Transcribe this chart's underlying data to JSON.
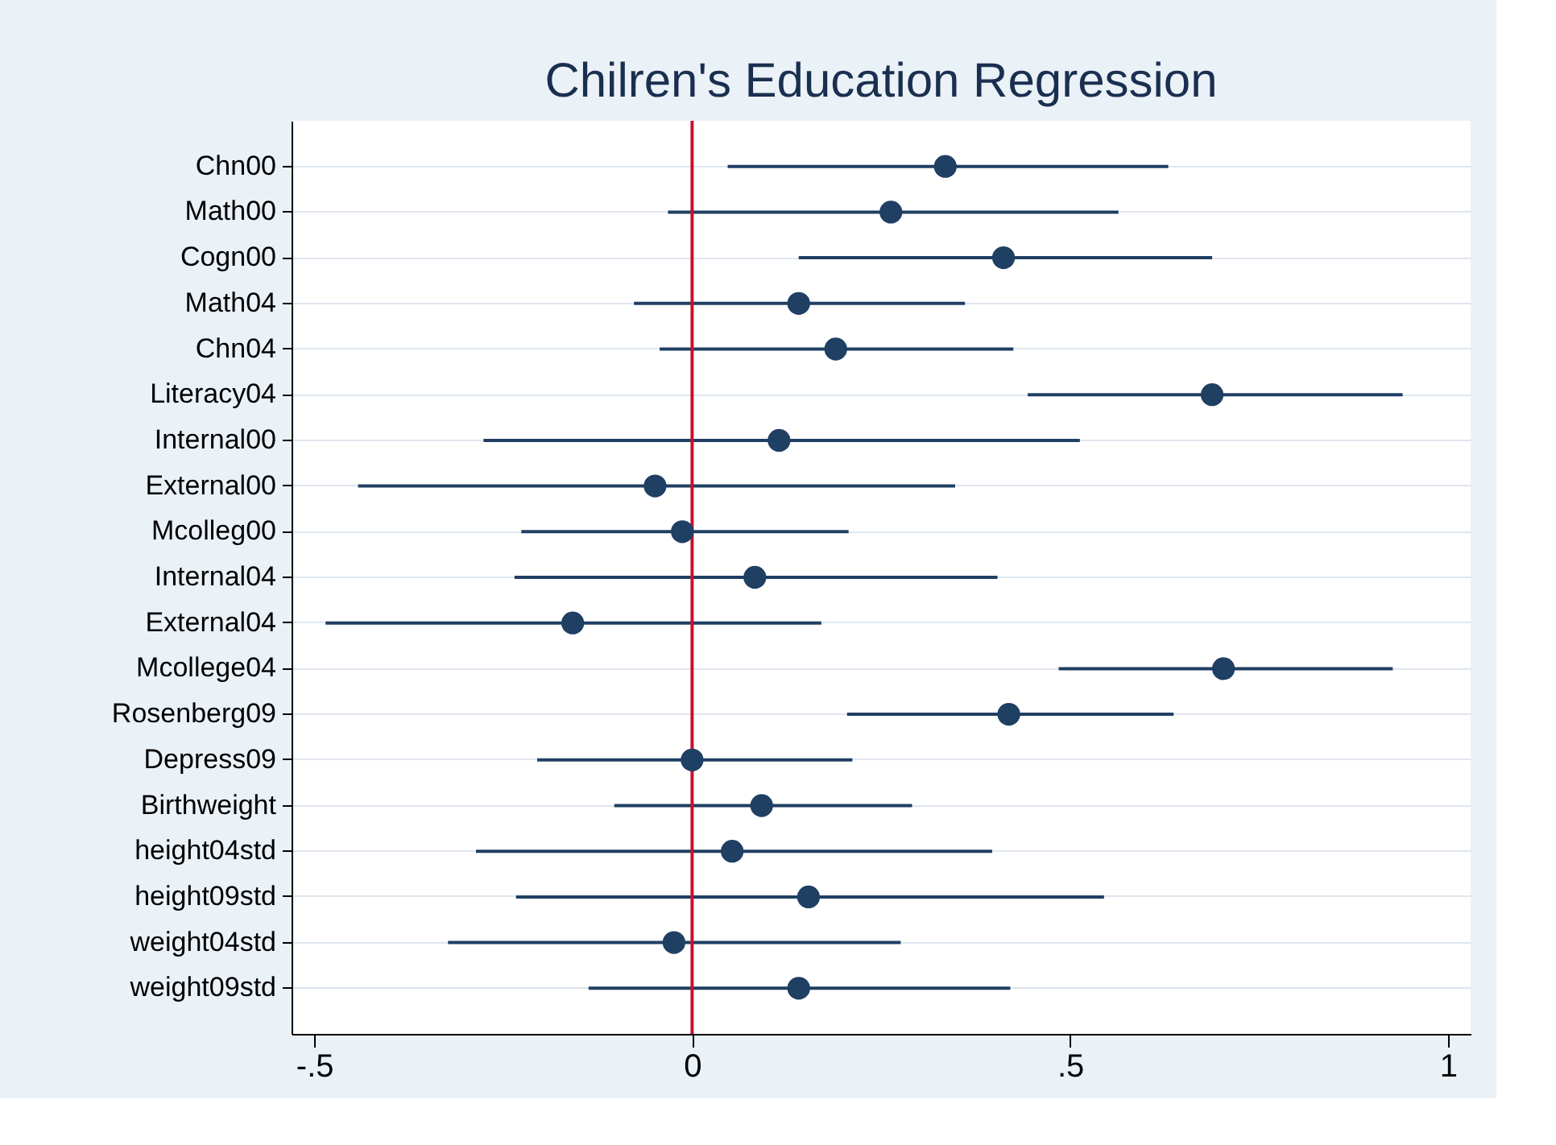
{
  "chart_data": {
    "type": "scatter",
    "orientation": "horizontal",
    "title": "Chilren's Education Regression",
    "categories": [
      "Chn00",
      "Math00",
      "Cogn00",
      "Math04",
      "Chn04",
      "Literacy04",
      "Internal00",
      "External00",
      "Mcolleg00",
      "Internal04",
      "External04",
      "Mcollege04",
      "Rosenberg09",
      "Depress09",
      "Birthweight",
      "height04std",
      "height09std",
      "weight04std",
      "weight09std"
    ],
    "values": [
      0.335,
      0.263,
      0.412,
      0.141,
      0.19,
      0.688,
      0.115,
      -0.049,
      -0.013,
      0.083,
      -0.158,
      0.703,
      0.419,
      0,
      0.092,
      0.053,
      0.154,
      -0.024,
      0.141
    ],
    "errors": [
      [
        0.047,
        0.63
      ],
      [
        -0.032,
        0.564
      ],
      [
        0.141,
        0.688
      ],
      [
        -0.077,
        0.361
      ],
      [
        -0.043,
        0.425
      ],
      [
        0.444,
        0.94
      ],
      [
        -0.276,
        0.513
      ],
      [
        -0.442,
        0.348
      ],
      [
        -0.226,
        0.207
      ],
      [
        -0.235,
        0.404
      ],
      [
        -0.485,
        0.171
      ],
      [
        0.485,
        0.927
      ],
      [
        0.205,
        0.637
      ],
      [
        -0.205,
        0.212
      ],
      [
        -0.103,
        0.291
      ],
      [
        -0.286,
        0.397
      ],
      [
        -0.233,
        0.545
      ],
      [
        -0.323,
        0.276
      ],
      [
        -0.137,
        0.421
      ]
    ],
    "color": "#1f3f63",
    "xlim": [
      -0.53,
      1.03
    ],
    "xticks": [
      {
        "value": -0.5,
        "label": "-.5"
      },
      0,
      {
        "value": 0.5,
        "label": ".5"
      },
      1
    ],
    "ref_lines": [
      {
        "axis": "x",
        "value": 0,
        "color": "#c8102e"
      }
    ],
    "grid": "y",
    "marker": "circle"
  }
}
